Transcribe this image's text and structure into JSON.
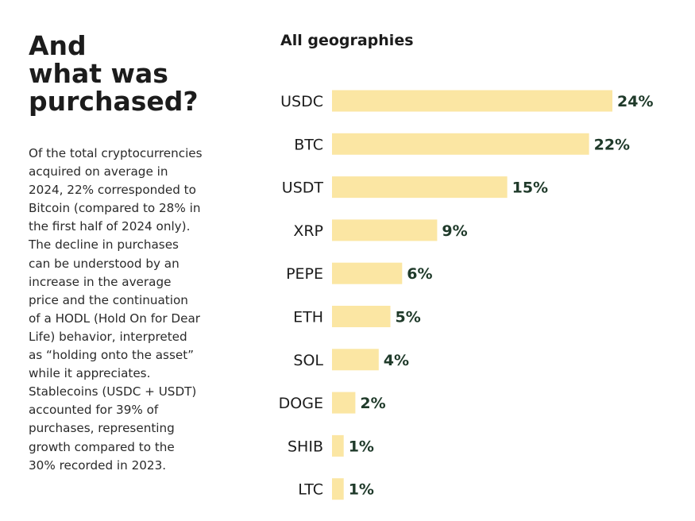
{
  "heading": {
    "lines": [
      "And",
      "what was",
      "purchased?"
    ]
  },
  "body": {
    "lines": [
      "Of the total cryptocurrencies",
      "acquired on average in",
      "2024, 22% corresponded to",
      "Bitcoin (compared to 28% in",
      "the first half of 2024 only).",
      "The decline in purchases",
      "can be understood by an",
      "increase in the average",
      "price and the continuation",
      "of a HODL (Hold On for Dear",
      "Life) behavior, interpreted",
      "as “holding onto the asset”",
      "while it appreciates.",
      "Stablecoins (USDC + USDT)",
      "accounted for 39% of",
      "purchases, representing",
      "growth compared to the",
      "30% recorded in 2023."
    ]
  },
  "colors": {
    "bar": "#fbe6a3",
    "value_label": "#1f3a2a",
    "category_label": "#1c1c1c"
  },
  "chart_data": {
    "type": "bar",
    "orientation": "horizontal",
    "title": "All geographies",
    "xlabel": "",
    "ylabel": "",
    "categories": [
      "USDC",
      "BTC",
      "USDT",
      "XRP",
      "PEPE",
      "ETH",
      "SOL",
      "DOGE",
      "SHIB",
      "LTC"
    ],
    "values": [
      24,
      22,
      15,
      9,
      6,
      5,
      4,
      2,
      1,
      1
    ],
    "value_labels": [
      "24%",
      "22%",
      "15%",
      "9%",
      "6%",
      "5%",
      "4%",
      "2%",
      "1%",
      "1%"
    ],
    "unit": "%",
    "xlim": [
      0,
      24
    ],
    "grid": false,
    "legend": "none"
  }
}
